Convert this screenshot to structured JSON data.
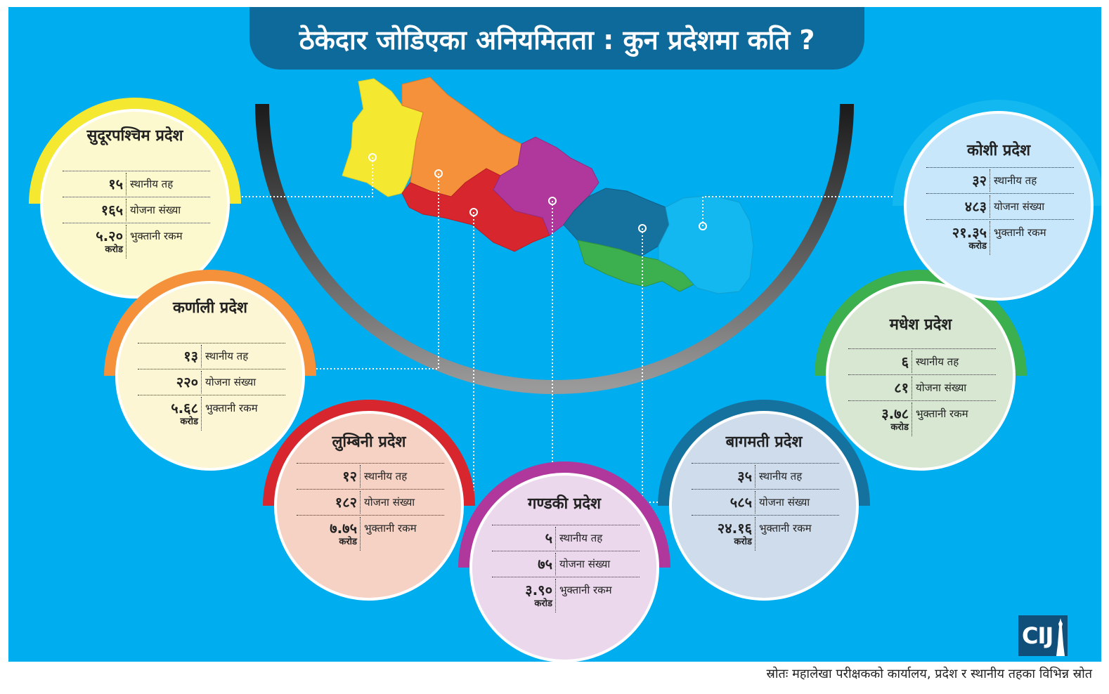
{
  "title": "ठेकेदार जोडिएका अनियमितता : कुन प्रदेशमा कति ?",
  "source": "स्रोतः महालेखा परीक्षकको कार्यालय, प्रदेश र स्थानीय तहका विभिन्न स्रोत",
  "logo_text": "CIJ",
  "labels": {
    "local_levels": "स्थानीय तह",
    "projects": "योजना संख्या",
    "payment": "भुक्तानी रकम",
    "unit": "करोड"
  },
  "provinces": [
    {
      "name": "सुदूरपश्चिम प्रदेश",
      "local_levels": "१५",
      "projects": "१६५",
      "payment": "५.२०",
      "color": "#f5e830",
      "light": "#fdf9cf"
    },
    {
      "name": "कर्णाली प्रदेश",
      "local_levels": "१३",
      "projects": "२२०",
      "payment": "५.६८",
      "color": "#f5913a",
      "light": "#fdf6d4"
    },
    {
      "name": "लुम्बिनी प्रदेश",
      "local_levels": "१२",
      "projects": "१८२",
      "payment": "७.७५",
      "color": "#d7262e",
      "light": "#f6d2c4"
    },
    {
      "name": "गण्डकी प्रदेश",
      "local_levels": "५",
      "projects": "७५",
      "payment": "३.९०",
      "color": "#b0379b",
      "light": "#ecd8ec"
    },
    {
      "name": "बागमती प्रदेश",
      "local_levels": "३५",
      "projects": "५८५",
      "payment": "२४.१६",
      "color": "#15729f",
      "light": "#cfdcec"
    },
    {
      "name": "मधेश प्रदेश",
      "local_levels": "६",
      "projects": "८१",
      "payment": "३.७८",
      "color": "#3caf4e",
      "light": "#d7e7d2"
    },
    {
      "name": "कोशी प्रदेश",
      "local_levels": "३२",
      "projects": "४८३",
      "payment": "२१.३५",
      "color": "#12b8ef",
      "light": "#c9e7fa"
    }
  ]
}
